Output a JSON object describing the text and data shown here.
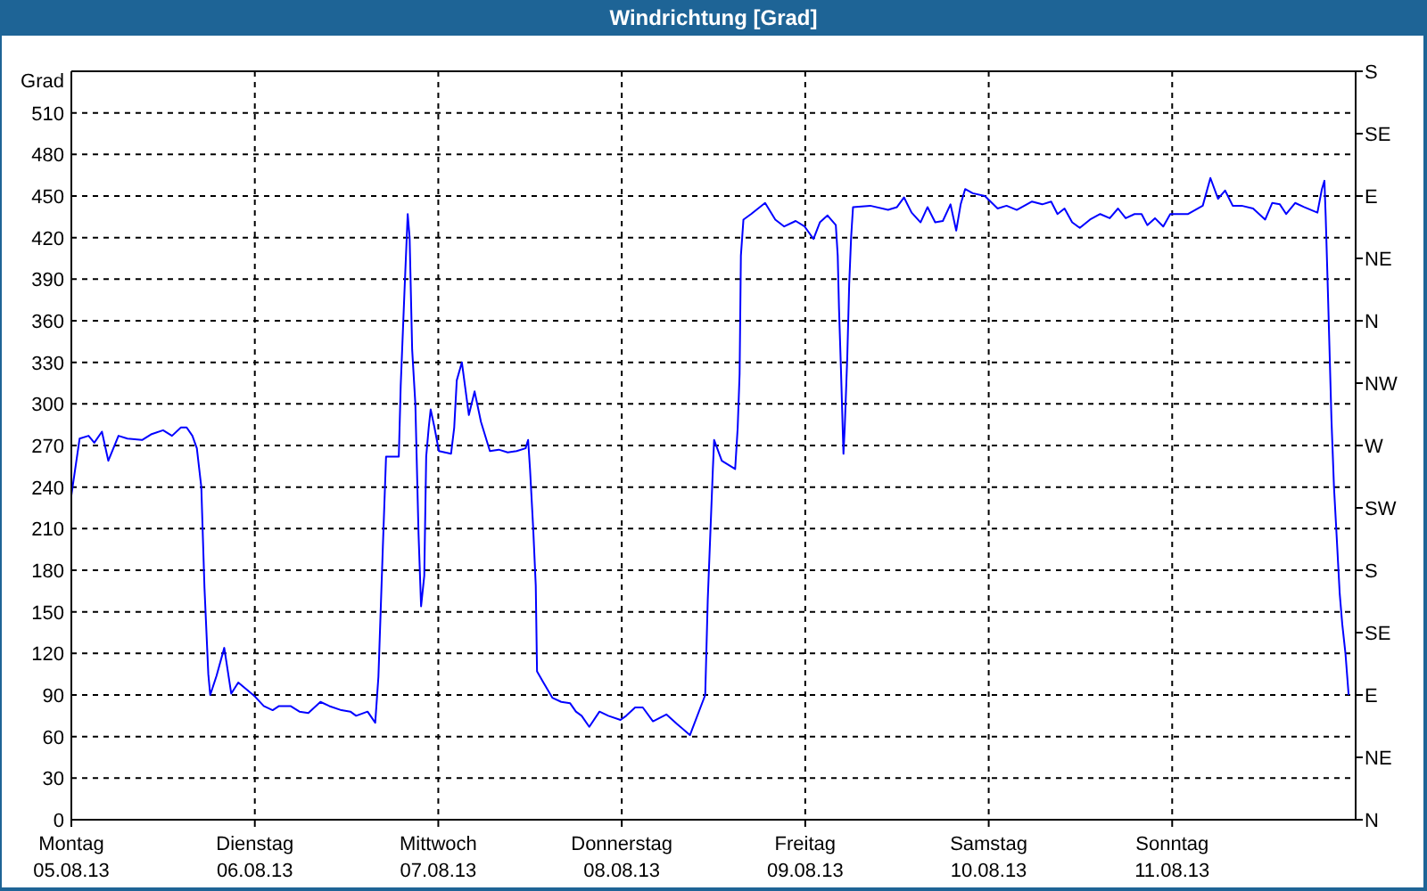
{
  "chart_data": {
    "type": "line",
    "title": "Windrichtung [Grad]",
    "ylabel": "Grad",
    "color": "#0000ff",
    "marker": "none",
    "line_style": "solid",
    "grid": true,
    "xlim": [
      "--08-05",
      "--08-12"
    ],
    "xticks": [
      {
        "value": "--08-05",
        "label": "Montag\n05.08.13"
      },
      {
        "value": "--08-06",
        "label": "Dienstag\n06.08.13"
      },
      {
        "value": "--08-07",
        "label": "Mittwoch\n07.08.13"
      },
      {
        "value": "--08-08",
        "label": "Donnerstag\n08.08.13"
      },
      {
        "value": "--08-09",
        "label": "Freitag\n09.08.13"
      },
      {
        "value": "--08-10",
        "label": "Samstag\n10.08.13"
      },
      {
        "value": "--08-11",
        "label": "Sonntag\n11.08.13"
      }
    ],
    "ylim": [
      0,
      540
    ],
    "yticks": [
      0,
      30,
      60,
      90,
      120,
      150,
      180,
      210,
      240,
      270,
      300,
      330,
      360,
      390,
      420,
      450,
      480,
      510
    ],
    "y2_categories": [
      "S",
      "SE",
      "E",
      "NE",
      "N",
      "NW",
      "W",
      "SW",
      "S",
      "SE",
      "E",
      "NE",
      "N"
    ],
    "x": [
      "--08-05T00:00",
      "--08-05T01:05",
      "--08-05T02:15",
      "--08-05T03:00",
      "--08-05T04:00",
      "--08-05T04:50",
      "--08-05T06:10",
      "--08-05T07:20",
      "--08-05T09:15",
      "--08-05T10:25",
      "--08-05T12:00",
      "--08-05T13:10",
      "--08-05T14:20",
      "--08-05T15:05",
      "--08-05T15:50",
      "--08-05T16:25",
      "--08-05T17:00",
      "--08-05T17:25",
      "--08-05T17:55",
      "--08-05T18:10",
      "--08-05T19:00",
      "--08-05T20:00",
      "--08-05T20:55",
      "--08-05T21:50",
      "--08-06T00:00",
      "--08-06T01:10",
      "--08-06T02:20",
      "--08-06T03:10",
      "--08-06T04:40",
      "--08-06T05:50",
      "--08-06T07:00",
      "--08-06T08:35",
      "--08-06T09:45",
      "--08-06T11:20",
      "--08-06T12:30",
      "--08-06T13:15",
      "--08-06T14:45",
      "--08-06T15:45",
      "--08-06T16:10",
      "--08-06T16:45",
      "--08-06T17:10",
      "--08-06T18:50",
      "--08-06T19:05",
      "--08-06T19:35",
      "--08-06T20:00",
      "--08-06T20:15",
      "--08-06T20:35",
      "--08-06T21:00",
      "--08-06T21:25",
      "--08-06T21:45",
      "--08-06T22:10",
      "--08-06T22:25",
      "--08-06T22:45",
      "--08-06T23:00",
      "--08-06T23:30",
      "--08-07T00:05",
      "--08-07T01:40",
      "--08-07T02:05",
      "--08-07T02:25",
      "--08-07T03:05",
      "--08-07T04:00",
      "--08-07T04:45",
      "--08-07T05:35",
      "--08-07T06:45",
      "--08-07T07:55",
      "--08-07T09:05",
      "--08-07T10:15",
      "--08-07T11:25",
      "--08-07T11:45",
      "--08-07T12:00",
      "--08-07T12:25",
      "--08-07T12:45",
      "--08-07T12:55",
      "--08-07T13:45",
      "--08-07T14:55",
      "--08-07T16:05",
      "--08-07T17:15",
      "--08-07T18:00",
      "--08-07T18:45",
      "--08-07T19:45",
      "--08-07T21:05",
      "--08-07T22:15",
      "--08-07T23:50",
      "--08-08T00:35",
      "--08-08T01:45",
      "--08-08T02:45",
      "--08-08T04:05",
      "--08-08T05:50",
      "--08-08T07:15",
      "--08-08T08:55",
      "--08-08T10:55",
      "--08-08T11:15",
      "--08-08T11:35",
      "--08-08T11:55",
      "--08-08T12:05",
      "--08-08T13:05",
      "--08-08T14:50",
      "--08-08T15:10",
      "--08-08T15:25",
      "--08-08T15:35",
      "--08-08T15:55",
      "--08-08T16:55",
      "--08-08T18:45",
      "--08-08T20:05",
      "--08-08T21:15",
      "--08-08T22:45",
      "--08-08T23:55",
      "--08-09T01:05",
      "--08-09T01:55",
      "--08-09T02:55",
      "--08-09T04:00",
      "--08-09T04:15",
      "--08-09T04:25",
      "--08-09T04:40",
      "--08-09T05:00",
      "--08-09T05:10",
      "--08-09T05:30",
      "--08-09T05:45",
      "--08-09T06:00",
      "--08-09T06:15",
      "--08-09T08:30",
      "--08-09T10:50",
      "--08-09T12:00",
      "--08-09T12:55",
      "--08-09T13:55",
      "--08-09T15:05",
      "--08-09T16:00",
      "--08-09T17:00",
      "--08-09T18:00",
      "--08-09T19:00",
      "--08-09T19:45",
      "--08-09T20:20",
      "--08-09T20:55",
      "--08-09T21:55",
      "--08-09T23:30",
      "--08-10T01:10",
      "--08-10T02:20",
      "--08-10T03:40",
      "--08-10T05:40",
      "--08-10T07:00",
      "--08-10T08:10",
      "--08-10T09:00",
      "--08-10T09:55",
      "--08-10T10:55",
      "--08-10T11:55",
      "--08-10T13:15",
      "--08-10T14:35",
      "--08-10T15:50",
      "--08-10T16:55",
      "--08-10T17:55",
      "--08-10T19:05",
      "--08-10T20:00",
      "--08-10T20:45",
      "--08-10T21:45",
      "--08-10T22:50",
      "--08-10T23:45",
      "--08-11T02:05",
      "--08-11T04:00",
      "--08-11T05:00",
      "--08-11T06:00",
      "--08-11T06:55",
      "--08-11T07:55",
      "--08-11T09:05",
      "--08-11T10:35",
      "--08-11T12:10",
      "--08-11T13:05",
      "--08-11T14:05",
      "--08-11T14:55",
      "--08-11T16:05",
      "--08-11T17:15",
      "--08-11T19:00",
      "--08-11T19:35",
      "--08-11T19:55",
      "--08-11T20:05",
      "--08-11T20:20",
      "--08-11T20:35",
      "--08-11T20:50",
      "--08-11T21:10",
      "--08-11T21:30",
      "--08-11T21:55",
      "--08-11T22:15",
      "--08-11T22:40",
      "--08-11T23:05"
    ],
    "values": [
      234,
      275,
      277,
      272,
      280,
      259,
      277,
      275,
      274,
      278,
      281,
      277,
      283,
      283,
      277,
      268,
      240,
      167,
      105,
      90,
      104,
      124,
      91,
      99,
      89,
      82,
      79,
      82,
      82,
      78,
      77,
      85,
      82,
      79,
      78,
      75,
      78,
      70,
      103,
      197,
      262,
      262,
      313,
      382,
      437,
      420,
      339,
      300,
      206,
      154,
      176,
      262,
      283,
      296,
      283,
      266,
      264,
      283,
      317,
      330,
      292,
      309,
      287,
      266,
      267,
      265,
      266,
      268,
      274,
      253,
      210,
      169,
      107,
      99,
      88,
      85,
      84,
      78,
      75,
      67,
      78,
      75,
      72,
      75,
      81,
      81,
      71,
      76,
      69,
      61,
      90,
      159,
      206,
      253,
      274,
      259,
      253,
      283,
      322,
      407,
      433,
      437,
      445,
      433,
      428,
      432,
      428,
      419,
      431,
      436,
      429,
      407,
      369,
      326,
      264,
      283,
      334,
      386,
      420,
      442,
      443,
      440,
      442,
      449,
      438,
      431,
      442,
      431,
      432,
      444,
      425,
      444,
      455,
      452,
      450,
      441,
      443,
      440,
      446,
      444,
      446,
      437,
      441,
      431,
      427,
      433,
      437,
      434,
      441,
      434,
      437,
      437,
      429,
      434,
      428,
      437,
      437,
      443,
      463,
      448,
      454,
      443,
      443,
      441,
      433,
      445,
      444,
      437,
      445,
      442,
      438,
      455,
      461,
      435,
      388,
      339,
      289,
      240,
      206,
      163,
      141,
      120,
      90
    ]
  }
}
